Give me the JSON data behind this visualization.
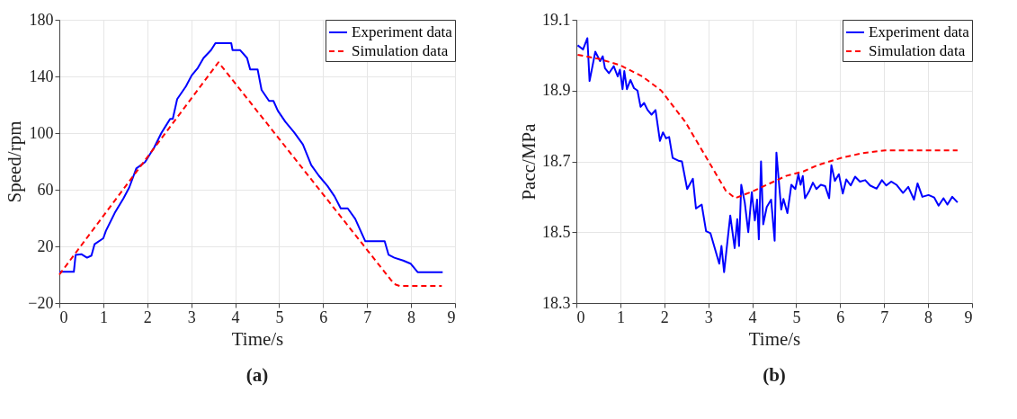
{
  "chart_data": [
    {
      "type": "line",
      "xlabel": "Time/s",
      "ylabel": "Speed/rpm",
      "xlim": [
        0,
        9
      ],
      "ylim": [
        -20,
        180
      ],
      "xticks": [
        0,
        1,
        2,
        3,
        4,
        5,
        6,
        7,
        8,
        9
      ],
      "yticks": [
        -20,
        20,
        60,
        100,
        140,
        180
      ],
      "grid": true,
      "legend": "top right",
      "annotations": [
        "(a)"
      ],
      "series": [
        {
          "name": "Experiment data",
          "color": "#0000ff",
          "line_style": "solid",
          "x": [
            0,
            0.33,
            0.37,
            0.5,
            0.63,
            0.73,
            0.8,
            1.0,
            1.06,
            1.26,
            1.46,
            1.59,
            1.75,
            1.95,
            2.16,
            2.32,
            2.42,
            2.52,
            2.58,
            2.68,
            2.88,
            3.01,
            3.15,
            3.28,
            3.45,
            3.55,
            3.91,
            3.94,
            4.11,
            4.27,
            4.34,
            4.51,
            4.6,
            4.77,
            4.87,
            4.97,
            5.14,
            5.34,
            5.54,
            5.73,
            5.9,
            6.1,
            6.26,
            6.4,
            6.56,
            6.73,
            6.96,
            7.4,
            7.49,
            7.62,
            7.82,
            7.99,
            8.15,
            8.72
          ],
          "values": [
            2,
            2,
            14,
            14.5,
            12,
            13.5,
            21.5,
            25.7,
            31,
            43.6,
            54,
            61.6,
            75,
            79.5,
            90,
            100,
            105,
            110,
            110,
            124,
            133,
            140.7,
            146,
            153,
            158.6,
            163.5,
            163.5,
            158.6,
            158.6,
            153,
            145,
            145,
            130.5,
            122.7,
            122.7,
            115.8,
            108,
            100.6,
            92,
            77.4,
            70,
            62.6,
            55.3,
            46.8,
            46.8,
            39.4,
            23.6,
            23.6,
            14,
            12,
            10,
            7.8,
            1.8,
            1.8
          ]
        },
        {
          "name": "Simulation data",
          "color": "#ff0000",
          "line_style": "dashed",
          "x": [
            0,
            3.62,
            7.55,
            7.65,
            7.75,
            8.7
          ],
          "values": [
            0,
            150,
            -4,
            -7,
            -8,
            -8
          ]
        }
      ]
    },
    {
      "type": "line",
      "xlabel": "Time/s",
      "ylabel": "Pacc/MPa",
      "xlim": [
        0,
        9
      ],
      "ylim": [
        18.3,
        19.1
      ],
      "xticks": [
        0,
        1,
        2,
        3,
        4,
        5,
        6,
        7,
        8,
        9
      ],
      "yticks": [
        18.3,
        18.5,
        18.7,
        18.9,
        19.1
      ],
      "grid": true,
      "legend": "top right",
      "annotations": [
        "(b)"
      ],
      "series": [
        {
          "name": "Experiment data",
          "color": "#0000ff",
          "line_style": "solid",
          "x": [
            0.03,
            0.15,
            0.25,
            0.3,
            0.43,
            0.54,
            0.6,
            0.65,
            0.74,
            0.85,
            0.94,
            0.99,
            1.05,
            1.09,
            1.15,
            1.23,
            1.31,
            1.39,
            1.46,
            1.54,
            1.62,
            1.71,
            1.8,
            1.9,
            1.97,
            2.04,
            2.11,
            2.19,
            2.32,
            2.4,
            2.52,
            2.65,
            2.72,
            2.85,
            2.95,
            3.05,
            3.25,
            3.3,
            3.36,
            3.5,
            3.6,
            3.66,
            3.7,
            3.75,
            3.83,
            3.91,
            3.99,
            4.06,
            4.11,
            4.15,
            4.2,
            4.25,
            4.33,
            4.43,
            4.51,
            4.55,
            4.66,
            4.71,
            4.8,
            4.89,
            4.98,
            5.05,
            5.1,
            5.15,
            5.2,
            5.3,
            5.38,
            5.46,
            5.56,
            5.66,
            5.75,
            5.8,
            5.88,
            5.97,
            6.06,
            6.14,
            6.24,
            6.34,
            6.45,
            6.57,
            6.68,
            6.83,
            6.95,
            7.05,
            7.16,
            7.28,
            7.43,
            7.55,
            7.68,
            7.76,
            7.87,
            8.01,
            8.14,
            8.24,
            8.35,
            8.44,
            8.55,
            8.67
          ],
          "values": [
            19.028,
            19.016,
            19.048,
            18.927,
            19.01,
            18.983,
            18.997,
            18.963,
            18.949,
            18.969,
            18.94,
            18.959,
            18.904,
            18.955,
            18.904,
            18.93,
            18.907,
            18.9,
            18.854,
            18.865,
            18.845,
            18.832,
            18.845,
            18.758,
            18.782,
            18.765,
            18.769,
            18.71,
            18.702,
            18.7,
            18.622,
            18.651,
            18.567,
            18.578,
            18.503,
            18.497,
            18.411,
            18.461,
            18.387,
            18.547,
            18.455,
            18.537,
            18.461,
            18.634,
            18.584,
            18.5,
            18.613,
            18.533,
            18.592,
            18.48,
            18.7,
            18.522,
            18.571,
            18.592,
            18.476,
            18.725,
            18.564,
            18.594,
            18.554,
            18.634,
            18.622,
            18.664,
            18.634,
            18.659,
            18.596,
            18.617,
            18.64,
            18.622,
            18.634,
            18.63,
            18.596,
            18.689,
            18.645,
            18.664,
            18.609,
            18.649,
            18.632,
            18.657,
            18.643,
            18.647,
            18.632,
            18.623,
            18.647,
            18.632,
            18.643,
            18.634,
            18.611,
            18.628,
            18.592,
            18.638,
            18.6,
            18.605,
            18.598,
            18.575,
            18.596,
            18.578,
            18.6,
            18.584
          ]
        },
        {
          "name": "Simulation data",
          "color": "#ff0000",
          "line_style": "dashed",
          "x": [
            0.03,
            0.5,
            0.99,
            1.5,
            1.93,
            2.48,
            3.04,
            3.4,
            3.61,
            4.04,
            4.77,
            5.17,
            5.5,
            6.03,
            6.5,
            7.02,
            8.67
          ],
          "values": [
            19.001,
            18.99,
            18.972,
            18.94,
            18.9,
            18.811,
            18.693,
            18.617,
            18.596,
            18.617,
            18.659,
            18.672,
            18.69,
            18.71,
            18.723,
            18.731,
            18.731
          ]
        }
      ]
    }
  ]
}
